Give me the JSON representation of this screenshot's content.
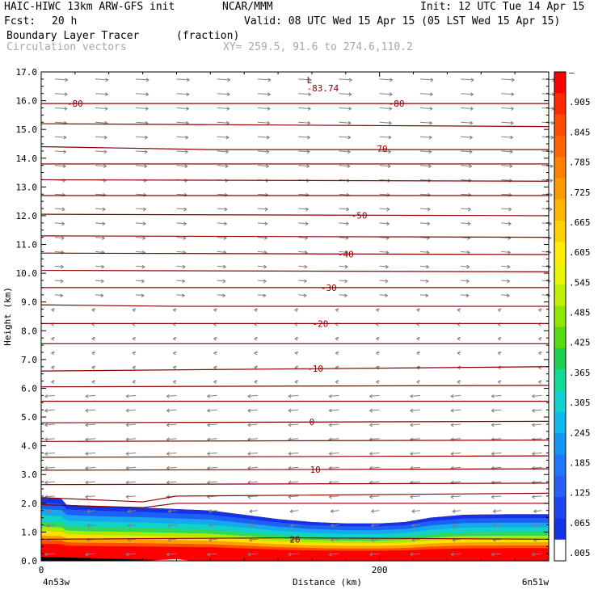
{
  "header": {
    "model": "HAIC-HIWC 13km ARW-GFS init",
    "org": "NCAR/MMM",
    "init": "Init: 12 UTC Tue 14 Apr 15",
    "fcst_label": "Fcst:",
    "fcst_value": "20 h",
    "valid": "Valid: 08 UTC Wed 15 Apr 15 (05 LST Wed 15 Apr 15)",
    "field": "Boundary Layer Tracer",
    "units": "(fraction)",
    "overlay": "Circulation vectors",
    "xy": "XY= 259.5, 91.6 to 274.6,110.2"
  },
  "chart_data": {
    "type": "cross-section",
    "ylabel": "Height (km)",
    "xlabel": "Distance (km)",
    "ylim": [
      0,
      17
    ],
    "xlim": [
      0,
      300
    ],
    "yticks": [
      "0.0",
      "1.0",
      "2.0",
      "3.0",
      "4.0",
      "5.0",
      "6.0",
      "7.0",
      "8.0",
      "9.0",
      "10.0",
      "11.0",
      "12.0",
      "13.0",
      "14.0",
      "15.0",
      "16.0",
      "17.0"
    ],
    "xticks": [
      {
        "value": 0,
        "label": "0"
      },
      {
        "value": 200,
        "label": "200"
      }
    ],
    "x_end_labels": {
      "left": "4n53w",
      "right": "6n51w"
    },
    "tracer_top_km": [
      [
        0,
        2.2
      ],
      [
        12,
        2.15
      ],
      [
        15,
        1.95
      ],
      [
        30,
        1.9
      ],
      [
        60,
        1.85
      ],
      [
        80,
        1.8
      ],
      [
        100,
        1.75
      ],
      [
        120,
        1.6
      ],
      [
        140,
        1.45
      ],
      [
        160,
        1.35
      ],
      [
        180,
        1.3
      ],
      [
        200,
        1.3
      ],
      [
        215,
        1.35
      ],
      [
        230,
        1.5
      ],
      [
        250,
        1.6
      ],
      [
        275,
        1.62
      ],
      [
        300,
        1.62
      ]
    ],
    "temperature_contours": [
      {
        "label": "-80",
        "points": [
          [
            0,
            15.9
          ],
          [
            300,
            15.9
          ]
        ],
        "label_x": [
          20,
          210
        ]
      },
      {
        "label": "",
        "points": [
          [
            0,
            15.2
          ],
          [
            300,
            15.1
          ]
        ]
      },
      {
        "label": "-70",
        "points": [
          [
            0,
            14.4
          ],
          [
            100,
            14.3
          ],
          [
            300,
            14.3
          ]
        ],
        "label_x": [
          200
        ]
      },
      {
        "label": "",
        "points": [
          [
            0,
            13.8
          ],
          [
            300,
            13.8
          ]
        ]
      },
      {
        "label": "",
        "points": [
          [
            0,
            13.25
          ],
          [
            300,
            13.2
          ]
        ]
      },
      {
        "label": "",
        "points": [
          [
            0,
            12.7
          ],
          [
            300,
            12.7
          ]
        ]
      },
      {
        "label": "-50",
        "points": [
          [
            0,
            12.05
          ],
          [
            300,
            12.0
          ]
        ],
        "label_x": [
          188
        ]
      },
      {
        "label": "",
        "points": [
          [
            0,
            11.3
          ],
          [
            300,
            11.25
          ]
        ]
      },
      {
        "label": "-40",
        "points": [
          [
            0,
            10.7
          ],
          [
            300,
            10.65
          ]
        ],
        "label_x": [
          180
        ]
      },
      {
        "label": "",
        "points": [
          [
            0,
            10.1
          ],
          [
            300,
            10.05
          ]
        ]
      },
      {
        "label": "-30",
        "points": [
          [
            0,
            9.5
          ],
          [
            300,
            9.5
          ]
        ],
        "label_x": [
          170
        ]
      },
      {
        "label": "",
        "points": [
          [
            0,
            8.9
          ],
          [
            80,
            8.85
          ],
          [
            300,
            8.85
          ]
        ]
      },
      {
        "label": "-20",
        "points": [
          [
            0,
            8.25
          ],
          [
            300,
            8.25
          ]
        ],
        "label_x": [
          165
        ]
      },
      {
        "label": "",
        "points": [
          [
            0,
            7.55
          ],
          [
            300,
            7.55
          ]
        ]
      },
      {
        "label": "-10",
        "points": [
          [
            0,
            6.6
          ],
          [
            300,
            6.75
          ]
        ],
        "label_x": [
          162
        ]
      },
      {
        "label": "",
        "points": [
          [
            0,
            6.05
          ],
          [
            300,
            6.1
          ]
        ]
      },
      {
        "label": "",
        "points": [
          [
            0,
            5.55
          ],
          [
            300,
            5.55
          ]
        ]
      },
      {
        "label": "0",
        "points": [
          [
            0,
            4.8
          ],
          [
            300,
            4.85
          ]
        ],
        "label_x": [
          160
        ]
      },
      {
        "label": "",
        "points": [
          [
            0,
            4.15
          ],
          [
            300,
            4.2
          ]
        ]
      },
      {
        "label": "",
        "points": [
          [
            0,
            3.6
          ],
          [
            300,
            3.65
          ]
        ]
      },
      {
        "label": "10",
        "points": [
          [
            0,
            3.15
          ],
          [
            300,
            3.2
          ]
        ],
        "label_x": [
          162
        ]
      },
      {
        "label": "",
        "points": [
          [
            0,
            2.65
          ],
          [
            300,
            2.7
          ]
        ]
      },
      {
        "label": "",
        "points": [
          [
            0,
            2.2
          ],
          [
            60,
            2.05
          ],
          [
            80,
            2.25
          ],
          [
            300,
            2.35
          ]
        ]
      },
      {
        "label": "",
        "points": [
          [
            0,
            1.95
          ],
          [
            60,
            1.85
          ],
          [
            80,
            2.0
          ],
          [
            300,
            2.0
          ]
        ]
      },
      {
        "label": "20",
        "points": [
          [
            0,
            0.75
          ],
          [
            150,
            0.8
          ],
          [
            300,
            0.75
          ]
        ],
        "label_x": [
          150
        ]
      }
    ],
    "low_marker": {
      "label": "L",
      "value": "-83.74",
      "x": 155,
      "y": 16.6
    },
    "colorbar": {
      "labels": [
        "–",
        ".905",
        ".845",
        ".785",
        ".725",
        ".665",
        ".605",
        ".545",
        ".485",
        ".425",
        ".365",
        ".305",
        ".245",
        ".185",
        ".125",
        ".065",
        ".005"
      ],
      "colors": [
        "#ff0000",
        "#ff2a00",
        "#ff4a00",
        "#ff6400",
        "#ff8000",
        "#ff9a00",
        "#ffb400",
        "#ffd000",
        "#ffec00",
        "#e8f400",
        "#bff000",
        "#8ee800",
        "#55dc10",
        "#1ed050",
        "#10dc96",
        "#10d2d2",
        "#10b8ee",
        "#1496f5",
        "#1f78fa",
        "#285ffa",
        "#1e46f0",
        "#1432e6",
        "#ffffff"
      ]
    }
  }
}
